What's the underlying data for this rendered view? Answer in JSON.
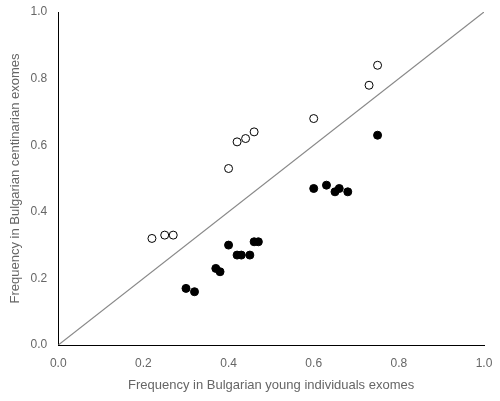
{
  "chart_data": {
    "type": "scatter",
    "xlabel": "Frequency in Bulgarian young individuals exomes",
    "ylabel": "Frequency in Bulgarian centinarian exomes",
    "series": [
      {
        "type": "line",
        "color": "#888888",
        "line_style": "solid",
        "x": [
          0,
          1
        ],
        "values": [
          0,
          1
        ]
      },
      {
        "type": "scatter",
        "color": "#000000",
        "marker": "open_circle",
        "x": [
          0.22,
          0.25,
          0.27,
          0.4,
          0.42,
          0.44,
          0.46,
          0.6,
          0.73,
          0.75
        ],
        "values": [
          0.32,
          0.33,
          0.33,
          0.53,
          0.61,
          0.62,
          0.64,
          0.68,
          0.78,
          0.84
        ]
      },
      {
        "type": "scatter",
        "color": "#000000",
        "marker": "circle",
        "x": [
          0.3,
          0.32,
          0.37,
          0.38,
          0.4,
          0.42,
          0.43,
          0.45,
          0.46,
          0.47,
          0.6,
          0.63,
          0.65,
          0.66,
          0.68,
          0.75
        ],
        "values": [
          0.17,
          0.16,
          0.23,
          0.22,
          0.3,
          0.27,
          0.27,
          0.27,
          0.31,
          0.31,
          0.47,
          0.48,
          0.46,
          0.47,
          0.46,
          0.63
        ]
      }
    ],
    "xlim": [
      0.0,
      1.0
    ],
    "ylim": [
      0.0,
      1.0
    ],
    "xticks": [
      {
        "value": 0,
        "label": "0.0"
      },
      0.2,
      0.4,
      0.6,
      0.8,
      {
        "value": 1,
        "label": "1.0"
      }
    ],
    "yticks": [
      {
        "value": 0,
        "label": "0.0"
      },
      0.2,
      0.4,
      0.6,
      0.8,
      {
        "value": 1,
        "label": "1.0"
      }
    ],
    "grid": false
  }
}
